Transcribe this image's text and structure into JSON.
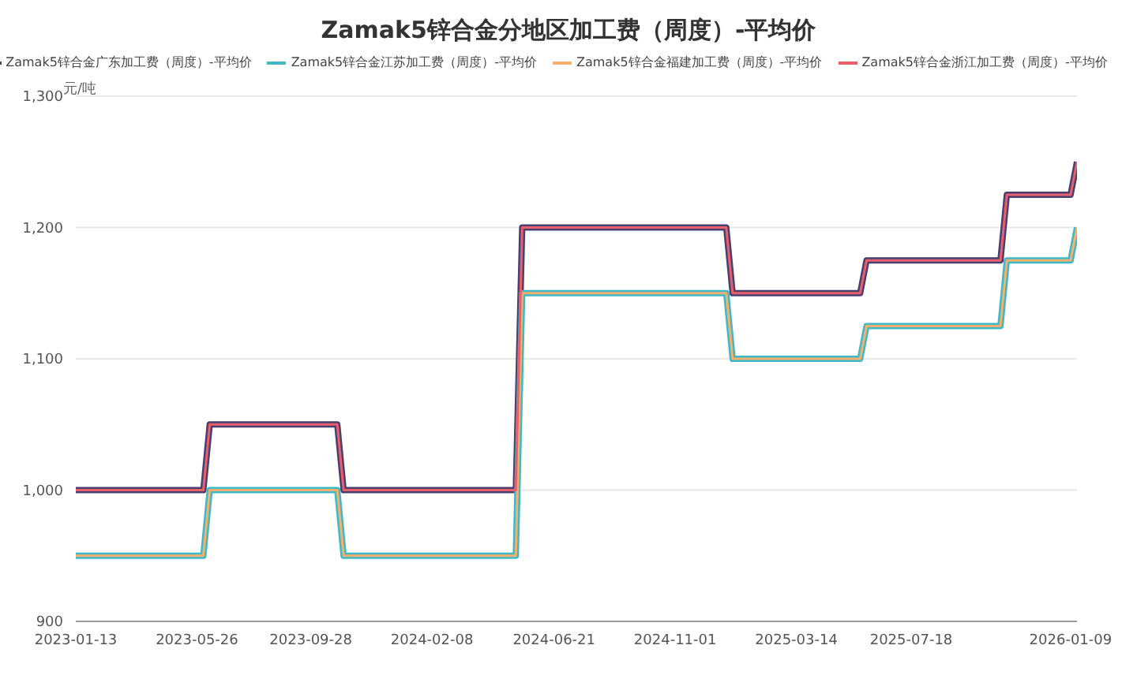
{
  "chart_data": {
    "type": "line",
    "title": "Zamak5锌合金分地区加工费（周度）-平均价",
    "ylabel": "元/吨",
    "x": [
      "2023-01-13",
      "2023-06-02",
      "2023-06-09",
      "2023-10-27",
      "2023-11-03",
      "2024-05-10",
      "2024-05-17",
      "2024-12-27",
      "2025-01-03",
      "2025-05-23",
      "2025-05-30",
      "2025-10-24",
      "2025-10-31",
      "2026-01-09",
      "2026-01-16"
    ],
    "series": [
      {
        "name": "Zamak5锌合金广东加工费（周度）-平均价",
        "color": "#4b3f72",
        "values": [
          1000,
          1000,
          1050,
          1050,
          1000,
          1000,
          1200,
          1200,
          1150,
          1150,
          1175,
          1175,
          1225,
          1225,
          1250
        ]
      },
      {
        "name": "Zamak5锌合金江苏加工费（周度）-平均价",
        "color": "#3fb8c8",
        "values": [
          950,
          950,
          1000,
          1000,
          950,
          950,
          1150,
          1150,
          1100,
          1100,
          1125,
          1125,
          1175,
          1175,
          1200
        ]
      },
      {
        "name": "Zamak5锌合金福建加工费（周度）-平均价",
        "color": "#f5b06e",
        "values": [
          950,
          950,
          1000,
          1000,
          950,
          950,
          1150,
          1150,
          1100,
          1100,
          1125,
          1125,
          1175,
          1175,
          1200
        ]
      },
      {
        "name": "Zamak5锌合金浙江加工费（周度）-平均价",
        "color": "#e8606a",
        "values": [
          1000,
          1000,
          1050,
          1050,
          1000,
          1000,
          1200,
          1200,
          1150,
          1150,
          1175,
          1175,
          1225,
          1225,
          1250
        ]
      }
    ],
    "xlim": [
      "2023-01-13",
      "2026-01-16"
    ],
    "xticks": [
      "2023-01-13",
      "2023-05-26",
      "2023-09-28",
      "2024-02-08",
      "2024-06-21",
      "2024-11-01",
      "2025-03-14",
      "2025-07-18",
      "2026-01-09"
    ],
    "ylim": [
      900,
      1300
    ],
    "yticks": [
      900,
      {
        "value": 1000,
        "label": "1,000"
      },
      {
        "value": 1100,
        "label": "1,100"
      },
      {
        "value": 1200,
        "label": "1,200"
      },
      {
        "value": 1300,
        "label": "1,300"
      }
    ],
    "grid": "y",
    "legend": "top",
    "marker": "none",
    "line_style": "solid"
  }
}
